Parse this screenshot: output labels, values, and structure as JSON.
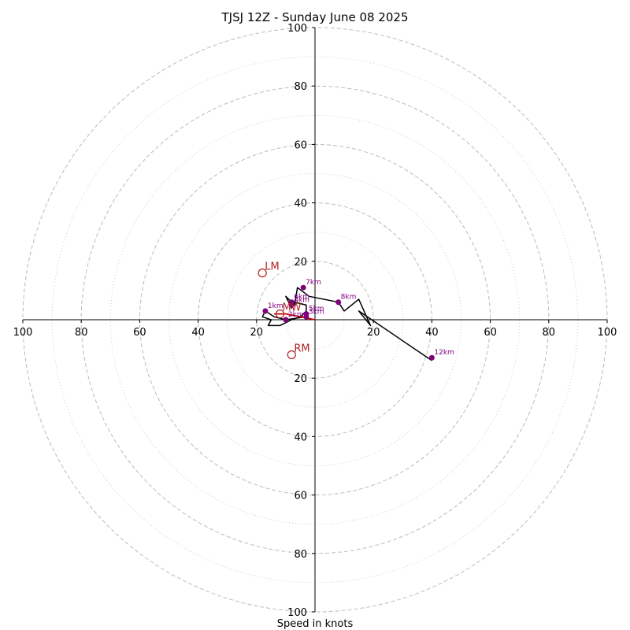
{
  "chart_data": {
    "type": "scatter",
    "title": "TJSJ 12Z - Sunday June 08 2025",
    "xlabel": "Speed in knots",
    "ylabel": "",
    "xlim": [
      -100,
      100
    ],
    "ylim": [
      -100,
      100
    ],
    "rings_major": [
      20,
      40,
      60,
      80,
      100
    ],
    "rings_minor": [
      10,
      30,
      50,
      70,
      90
    ],
    "x_ticks": [
      {
        "value": -100,
        "label": "100"
      },
      {
        "value": -80,
        "label": "80"
      },
      {
        "value": -60,
        "label": "60"
      },
      {
        "value": -40,
        "label": "40"
      },
      {
        "value": -20,
        "label": "20"
      },
      {
        "value": 20,
        "label": "20"
      },
      {
        "value": 40,
        "label": "40"
      },
      {
        "value": 60,
        "label": "60"
      },
      {
        "value": 80,
        "label": "80"
      },
      {
        "value": 100,
        "label": "100"
      }
    ],
    "y_ticks": [
      {
        "value": 100,
        "label": "100"
      },
      {
        "value": 80,
        "label": "80"
      },
      {
        "value": 60,
        "label": "60"
      },
      {
        "value": 40,
        "label": "40"
      },
      {
        "value": 20,
        "label": "20"
      },
      {
        "value": -20,
        "label": "20"
      },
      {
        "value": -40,
        "label": "40"
      },
      {
        "value": -60,
        "label": "60"
      },
      {
        "value": -80,
        "label": "80"
      },
      {
        "value": -100,
        "label": "100"
      }
    ],
    "hodograph": [
      {
        "u": -3,
        "v": 1
      },
      {
        "u": -10,
        "v": 0
      },
      {
        "u": -14,
        "v": 1
      },
      {
        "u": -17,
        "v": 3
      },
      {
        "u": -18,
        "v": 1
      },
      {
        "u": -15,
        "v": 0
      },
      {
        "u": -16,
        "v": -2
      },
      {
        "u": -12,
        "v": -2
      },
      {
        "u": -10,
        "v": -1
      },
      {
        "u": -8,
        "v": 0
      },
      {
        "u": -5,
        "v": 1
      },
      {
        "u": -3,
        "v": 3
      },
      {
        "u": -3,
        "v": 5
      },
      {
        "u": -7,
        "v": 6
      },
      {
        "u": -8,
        "v": 4
      },
      {
        "u": -10,
        "v": 8
      },
      {
        "u": -7,
        "v": 5
      },
      {
        "u": -6,
        "v": 11
      },
      {
        "u": -2,
        "v": 8
      },
      {
        "u": 8,
        "v": 6
      },
      {
        "u": 10,
        "v": 3
      },
      {
        "u": 15,
        "v": 7
      },
      {
        "u": 19,
        "v": -2
      },
      {
        "u": 15,
        "v": 3
      },
      {
        "u": 40,
        "v": -14
      }
    ],
    "low_level_segment": [
      {
        "u": 0,
        "v": 0
      },
      {
        "u": -5,
        "v": 1
      },
      {
        "u": -10,
        "v": 2
      },
      {
        "u": -14,
        "v": 2
      }
    ],
    "height_markers": [
      {
        "label": "1km",
        "u": -17,
        "v": 3
      },
      {
        "label": "2km",
        "u": -10,
        "v": 0
      },
      {
        "label": "3km",
        "u": -3,
        "v": 1
      },
      {
        "label": "4km",
        "u": -8,
        "v": 5
      },
      {
        "label": "5km",
        "u": -3,
        "v": 2
      },
      {
        "label": "6km",
        "u": -8,
        "v": 6
      },
      {
        "label": "7km",
        "u": -4,
        "v": 11
      },
      {
        "label": "8km",
        "u": 8,
        "v": 6
      },
      {
        "label": "12km",
        "u": 40,
        "v": -13
      }
    ],
    "storm_motion": [
      {
        "label": "LM",
        "u": -18,
        "v": 16
      },
      {
        "label": "RM",
        "u": -8,
        "v": -12
      },
      {
        "label": "MW",
        "u": -12,
        "v": 2
      }
    ],
    "colors": {
      "hodograph": "#000000",
      "low_level": "#cc0000",
      "markers": "#800080",
      "storm_motion": "#b22222",
      "ring": "#bbbbbb",
      "axis": "#000000"
    }
  }
}
